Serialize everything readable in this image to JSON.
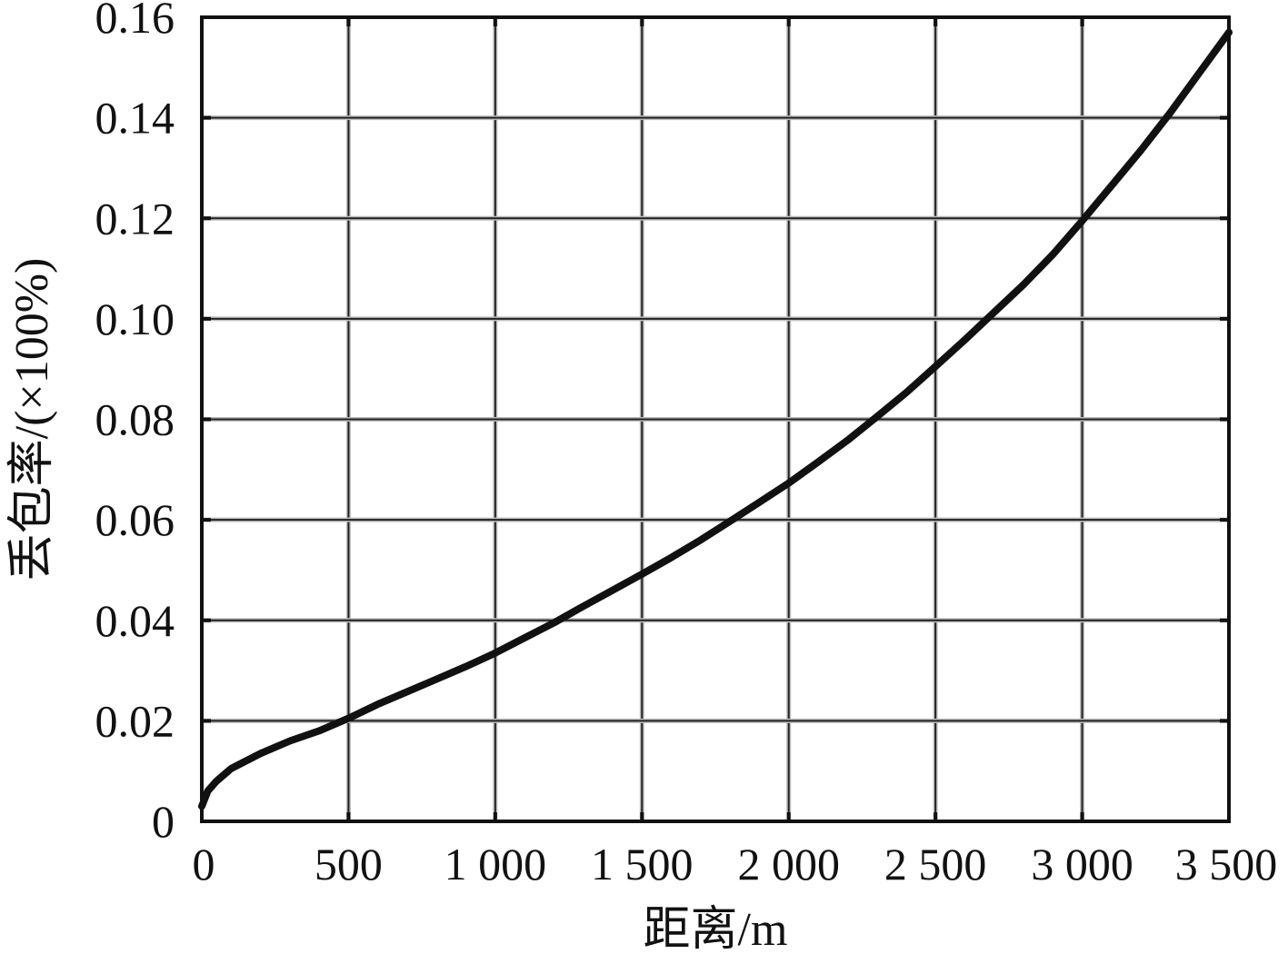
{
  "chart_data": {
    "type": "line",
    "title": "",
    "xlabel": "距离/m",
    "ylabel": "丢包率/(×100%)",
    "xlim": [
      0,
      3500
    ],
    "ylim": [
      0,
      0.16
    ],
    "grid": true,
    "x_ticks": [
      0,
      500,
      1000,
      1500,
      2000,
      2500,
      3000,
      3500
    ],
    "x_tick_labels": [
      "0",
      "500",
      "1 000",
      "1 500",
      "2 000",
      "2 500",
      "3 000",
      "3 500"
    ],
    "y_ticks": [
      0,
      0.02,
      0.04,
      0.06,
      0.08,
      0.1,
      0.12,
      0.14,
      0.16
    ],
    "y_tick_labels": [
      "0",
      "0.02",
      "0.04",
      "0.06",
      "0.08",
      "0.10",
      "0.12",
      "0.14",
      "0.16"
    ],
    "series": [
      {
        "color": "#111111",
        "x": [
          0,
          20,
          50,
          100,
          200,
          300,
          400,
          500,
          600,
          700,
          800,
          900,
          1000,
          1100,
          1200,
          1300,
          1400,
          1500,
          1600,
          1700,
          1800,
          1900,
          2000,
          2100,
          2200,
          2300,
          2400,
          2500,
          2600,
          2700,
          2800,
          2900,
          3000,
          3100,
          3200,
          3300,
          3400,
          3500
        ],
        "y": [
          0.003,
          0.006,
          0.008,
          0.0105,
          0.0135,
          0.016,
          0.018,
          0.0205,
          0.0233,
          0.0258,
          0.0283,
          0.0308,
          0.0335,
          0.0365,
          0.0395,
          0.0428,
          0.046,
          0.0492,
          0.0525,
          0.056,
          0.0597,
          0.0635,
          0.0673,
          0.0715,
          0.0758,
          0.0805,
          0.0853,
          0.0905,
          0.0958,
          0.1013,
          0.1068,
          0.1128,
          0.1195,
          0.1265,
          0.1335,
          0.141,
          0.149,
          0.157
        ]
      }
    ]
  }
}
